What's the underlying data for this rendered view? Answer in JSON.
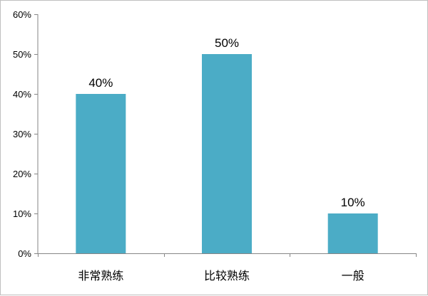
{
  "chart_data": {
    "type": "bar",
    "title": "",
    "xlabel": "",
    "ylabel": "",
    "categories": [
      "非常熟练",
      "比较熟练",
      "一般"
    ],
    "values": [
      0.4,
      0.5,
      0.1
    ],
    "data_labels": [
      "40%",
      "50%",
      "10%"
    ],
    "ylim": [
      0,
      0.6
    ],
    "y_ticks": [
      0,
      0.1,
      0.2,
      0.3,
      0.4,
      0.5,
      0.6
    ],
    "y_tick_labels": [
      "0%",
      "10%",
      "20%",
      "30%",
      "40%",
      "50%",
      "60%"
    ],
    "grid": false,
    "legend": "none",
    "colors": {
      "bar": "#4bacc6",
      "axis": "#868686"
    }
  }
}
